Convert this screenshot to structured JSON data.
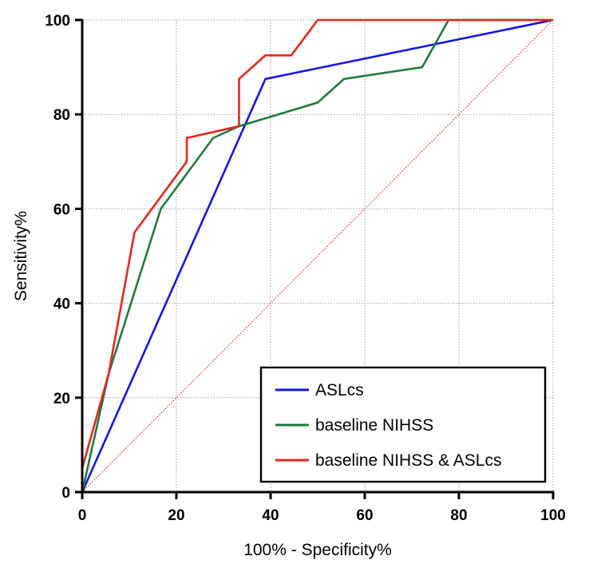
{
  "chart_data": {
    "type": "line",
    "xlabel": "100% - Specificity%",
    "ylabel": "Sensitivity%",
    "xlim": [
      0,
      100
    ],
    "ylim": [
      0,
      100
    ],
    "xticks": [
      0,
      20,
      40,
      60,
      80,
      100
    ],
    "yticks": [
      0,
      20,
      40,
      60,
      80,
      100
    ],
    "grid": true,
    "legend_position": "bottom-right",
    "reference_line": {
      "points": [
        [
          0,
          0
        ],
        [
          100,
          100
        ]
      ],
      "color": "#e8251c",
      "style": "dotted"
    },
    "series": [
      {
        "name": "ASLcs",
        "color": "#1515e6",
        "points": [
          [
            0,
            0
          ],
          [
            38.9,
            87.5
          ],
          [
            100,
            100
          ]
        ]
      },
      {
        "name": "baseline NIHSS",
        "color": "#1e7b3c",
        "points": [
          [
            0,
            0
          ],
          [
            5.6,
            25
          ],
          [
            16.7,
            60
          ],
          [
            27.8,
            75
          ],
          [
            33.3,
            77.5
          ],
          [
            50,
            82.5
          ],
          [
            55.6,
            87.5
          ],
          [
            72.2,
            90
          ],
          [
            77.8,
            100
          ],
          [
            100,
            100
          ]
        ]
      },
      {
        "name": "baseline NIHSS & ASLcs",
        "color": "#e8251c",
        "points": [
          [
            0,
            0
          ],
          [
            0,
            5
          ],
          [
            5.6,
            25
          ],
          [
            11.1,
            55
          ],
          [
            22.2,
            70
          ],
          [
            22.2,
            75
          ],
          [
            33.3,
            77.5
          ],
          [
            33.3,
            87.5
          ],
          [
            38.9,
            92.5
          ],
          [
            44.4,
            92.5
          ],
          [
            50,
            100
          ],
          [
            100,
            100
          ]
        ]
      }
    ]
  }
}
